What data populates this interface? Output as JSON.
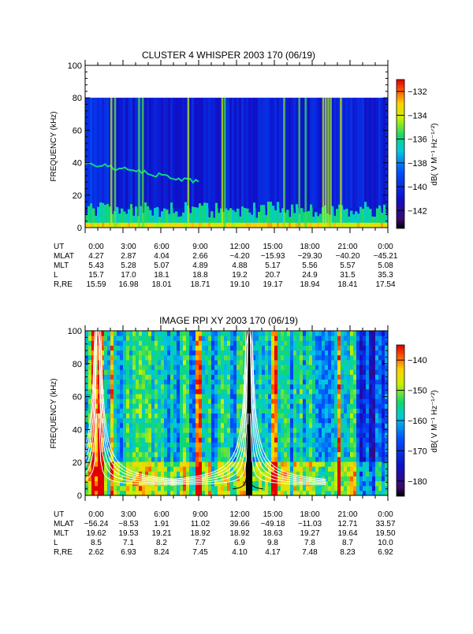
{
  "charts": {
    "c1": {
      "title": "CLUSTER 4 WHISPER 2003 170 (06/19)",
      "ylabel": "FREQUENCY (kHz)",
      "yticks": [
        "0",
        "20",
        "40",
        "60",
        "80",
        "100"
      ],
      "colorbar": {
        "label": "dB( V M⁻¹ Hz⁻¹ᐟ²)",
        "ticks": [
          "-132",
          "-134",
          "-136",
          "-138",
          "-140",
          "-142"
        ]
      },
      "table_labels": [
        "UT",
        "MLAT",
        "MLT",
        "L",
        "R,RE"
      ],
      "table": {
        "UT": [
          "0:00",
          "3:00",
          "6:00",
          "9:00",
          "12:00",
          "15:00",
          "18:00",
          "21:00",
          "0:00"
        ],
        "MLAT": [
          "4.27",
          "2.87",
          "4.04",
          "2.66",
          "−4.20",
          "−15.93",
          "−29.30",
          "−40.20",
          "−45.21"
        ],
        "MLT": [
          "5.43",
          "5.28",
          "5.07",
          "4.89",
          "4.88",
          "5.17",
          "5.56",
          "5.57",
          "5.08"
        ],
        "L": [
          "15.7",
          "17.0",
          "18.1",
          "18.8",
          "19.2",
          "20.7",
          "24.9",
          "31.5",
          "35.3"
        ],
        "R,RE": [
          "15.59",
          "16.98",
          "18.01",
          "18.71",
          "19.10",
          "19.17",
          "18.94",
          "18.41",
          "17.54"
        ]
      }
    },
    "c2": {
      "title": "IMAGE RPI XY 2003 170 (06/19)",
      "ylabel": "FREQUENCY (kHz)",
      "yticks": [
        "0",
        "20",
        "40",
        "60",
        "80",
        "100"
      ],
      "colorbar": {
        "label": "dB( V M⁻¹ Hz⁻¹ᐟ²)",
        "ticks": [
          "-140",
          "-150",
          "-160",
          "-170",
          "-180"
        ]
      },
      "table_labels": [
        "UT",
        "MLAT",
        "MLT",
        "L",
        "R,RE"
      ],
      "table": {
        "UT": [
          "0:00",
          "3:00",
          "6:00",
          "9:00",
          "12:00",
          "15:00",
          "18:00",
          "21:00",
          "0:00"
        ],
        "MLAT": [
          "−56.24",
          "−8.53",
          "1.91",
          "11.02",
          "39.66",
          "−49.18",
          "−11.03",
          "12.71",
          "33.57"
        ],
        "MLT": [
          "19.62",
          "19.53",
          "19.21",
          "18.92",
          "18.92",
          "18.63",
          "19.27",
          "19.64",
          "19.50"
        ],
        "L": [
          "8.5",
          "7.1",
          "8.2",
          "7.7",
          "6.9",
          "9.8",
          "7.8",
          "8.7",
          "10.0"
        ],
        "R,RE": [
          "2.62",
          "6.93",
          "8.24",
          "7.45",
          "4.10",
          "4.17",
          "7.48",
          "8.23",
          "6.92"
        ]
      }
    }
  },
  "chart_data": [
    {
      "type": "heatmap",
      "title": "CLUSTER 4 WHISPER 2003 170 (06/19)",
      "ylabel": "FREQUENCY (kHz)",
      "xlabel": "UT",
      "x_ticks": [
        "0:00",
        "3:00",
        "6:00",
        "9:00",
        "12:00",
        "15:00",
        "18:00",
        "21:00",
        "0:00"
      ],
      "xlim_hours": [
        0,
        24
      ],
      "ylim": [
        0,
        100
      ],
      "data_ymax": 80,
      "colorbar": {
        "label": "dB( V M⁻¹ Hz⁻¹ᐟ²)",
        "range": [
          -143.5,
          -131
        ],
        "ticks": [
          -132,
          -134,
          -136,
          -138,
          -140,
          -142
        ]
      },
      "features": {
        "background_db": -140.5,
        "low_band_db": -137,
        "low_band_top_khz": 10,
        "bright_band_db": -134.5,
        "bright_band_top_khz": 3,
        "emission_line": {
          "start_hour": 0,
          "end_hour": 9,
          "start_khz": 40,
          "end_khz": 28,
          "db": -136
        },
        "broadband_bursts_hours": [
          2.0,
          2.3,
          4.2,
          4.5,
          8.1,
          10.8,
          11.0,
          15.7,
          16.9,
          17.4,
          18.8,
          19.0,
          19.2,
          19.4,
          20.2
        ],
        "background_gap_hours": [
          [
            0,
            3.0
          ]
        ]
      }
    },
    {
      "type": "heatmap",
      "title": "IMAGE RPI XY 2003 170 (06/19)",
      "ylabel": "FREQUENCY (kHz)",
      "xlabel": "UT",
      "x_ticks": [
        "0:00",
        "3:00",
        "6:00",
        "9:00",
        "12:00",
        "15:00",
        "18:00",
        "21:00",
        "0:00"
      ],
      "xlim_hours": [
        0,
        24
      ],
      "ylim": [
        0,
        100
      ],
      "colorbar": {
        "label": "dB( V M⁻¹ Hz⁻¹ᐟ²)",
        "range": [
          -185,
          -135
        ],
        "ticks": [
          -140,
          -150,
          -160,
          -170,
          -180
        ]
      },
      "features": {
        "background_db": -158,
        "hot_intervals_hours": [
          [
            0.4,
            1.4
          ],
          [
            1.8,
            2.2
          ],
          [
            8.7,
            9.2
          ],
          [
            14.6,
            15.2
          ],
          [
            19.8,
            20.0
          ]
        ],
        "quiet_intervals_hours": [
          [
            21.4,
            24
          ]
        ],
        "low_band_db": -152,
        "low_band_top_khz": 20,
        "gap_hours": [
          12.7,
          13.1
        ],
        "plasma_frequency_curves": {
          "center_hours": [
            1.0,
            13.0
          ],
          "count": 6,
          "color": "#ffffff"
        },
        "black_curve_center_hours": 12.9
      }
    }
  ]
}
